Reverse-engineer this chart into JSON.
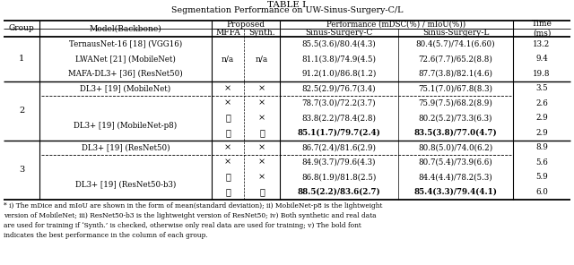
{
  "title1": "TABLE I",
  "title2": "Segmentation Performance on UW-Sinus-Surgery-C/L",
  "footnote": "* i) The mDice and mIoU are shown in the form of mean(standard deviation); ii) MobileNet-p8 is the lightweight\nversion of MobileNet; iii) ResNet50-b3 is the lightweight version of ResNet50; iv) Both synthetic and real data\nare used for training if ‘Synth.’ is checked, otherwise only real data are used for training; v) The bold font\nindicates the best performance in the column of each group.",
  "rows": [
    {
      "group": "1",
      "model": "TernausNet-16 [18] (VGG16)",
      "mffa": "n/a",
      "synth": "n/a",
      "sc": "85.5(3.6)/80.4(4.3)",
      "sl": "80.4(5.7)/74.1(6.60)",
      "time": "13.2",
      "bold_sc": false,
      "bold_sl": false,
      "dashed_above": false
    },
    {
      "group": "",
      "model": "LWANet [21] (MobileNet)",
      "mffa": "n/a",
      "synth": "n/a",
      "sc": "81.1(3.8)/74.9(4.5)",
      "sl": "72.6(7.7)/65.2(8.8)",
      "time": "9.4",
      "bold_sc": false,
      "bold_sl": false,
      "dashed_above": false
    },
    {
      "group": "",
      "model": "MAFA-DL3+ [36] (ResNet50)",
      "mffa": "n/a",
      "synth": "n/a",
      "sc": "91.2(1.0)/86.8(1.2)",
      "sl": "87.7(3.8)/82.1(4.6)",
      "time": "19.8",
      "bold_sc": false,
      "bold_sl": false,
      "dashed_above": false
    },
    {
      "group": "2",
      "model": "DL3+ [19] (MobileNet)",
      "mffa": "x",
      "synth": "x",
      "sc": "82.5(2.9)/76.7(3.4)",
      "sl": "75.1(7.0)/67.8(8.3)",
      "time": "3.5",
      "bold_sc": false,
      "bold_sl": false,
      "dashed_above": false
    },
    {
      "group": "",
      "model": "",
      "mffa": "x",
      "synth": "x",
      "sc": "78.7(3.0)/72.2(3.7)",
      "sl": "75.9(7.5)/68.2(8.9)",
      "time": "2.6",
      "bold_sc": false,
      "bold_sl": false,
      "dashed_above": true
    },
    {
      "group": "",
      "model": "DL3+ [19] (MobileNet-p8)",
      "mffa": "v",
      "synth": "x",
      "sc": "83.8(2.2)/78.4(2.8)",
      "sl": "80.2(5.2)/73.3(6.3)",
      "time": "2.9",
      "bold_sc": false,
      "bold_sl": false,
      "dashed_above": false
    },
    {
      "group": "",
      "model": "",
      "mffa": "v",
      "synth": "v",
      "sc": "85.1(1.7)/79.7(2.4)",
      "sl": "83.5(3.8)/77.0(4.7)",
      "time": "2.9",
      "bold_sc": true,
      "bold_sl": true,
      "dashed_above": false
    },
    {
      "group": "3",
      "model": "DL3+ [19] (ResNet50)",
      "mffa": "x",
      "synth": "x",
      "sc": "86.7(2.4)/81.6(2.9)",
      "sl": "80.8(5.0)/74.0(6.2)",
      "time": "8.9",
      "bold_sc": false,
      "bold_sl": false,
      "dashed_above": false
    },
    {
      "group": "",
      "model": "",
      "mffa": "x",
      "synth": "x",
      "sc": "84.9(3.7)/79.6(4.3)",
      "sl": "80.7(5.4)/73.9(6.6)",
      "time": "5.6",
      "bold_sc": false,
      "bold_sl": false,
      "dashed_above": true
    },
    {
      "group": "",
      "model": "DL3+ [19] (ResNet50-b3)",
      "mffa": "v",
      "synth": "x",
      "sc": "86.8(1.9)/81.8(2.5)",
      "sl": "84.4(4.4)/78.2(5.3)",
      "time": "5.9",
      "bold_sc": false,
      "bold_sl": false,
      "dashed_above": false
    },
    {
      "group": "",
      "model": "",
      "mffa": "v",
      "synth": "v",
      "sc": "88.5(2.2)/83.6(2.7)",
      "sl": "85.4(3.3)/79.4(4.1)",
      "time": "6.0",
      "bold_sc": true,
      "bold_sl": true,
      "dashed_above": false
    }
  ],
  "group_spans": {
    "0": 3,
    "3": 4,
    "7": 4
  },
  "model_spans": {
    "0": {
      "span": 1,
      "name": "TernausNet-16 [18] (VGG16)"
    },
    "1": {
      "span": 1,
      "name": "LWANet [21] (MobileNet)"
    },
    "2": {
      "span": 1,
      "name": "MAFA-DL3+ [36] (ResNet50)"
    },
    "3": {
      "span": 1,
      "name": "DL3+ [19] (MobileNet)"
    },
    "5": {
      "span": 2,
      "name": "DL3+ [19] (MobileNet-p8)"
    },
    "7": {
      "span": 1,
      "name": "DL3+ [19] (ResNet50)"
    },
    "9": {
      "span": 2,
      "name": "DL3+ [19] (ResNet50-b3)"
    }
  }
}
